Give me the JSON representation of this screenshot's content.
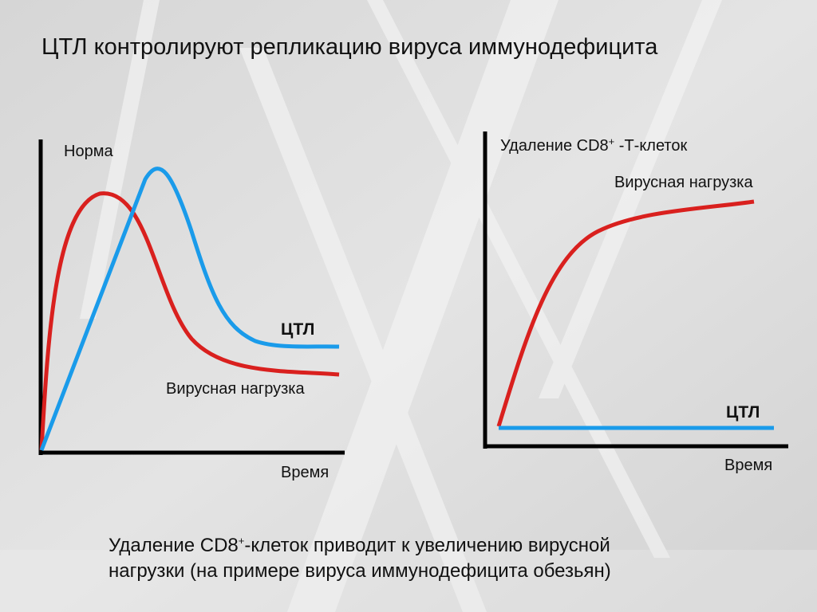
{
  "title": "ЦТЛ контролируют репликацию вируса иммунодефицита",
  "panels": [
    {
      "heading": {
        "parts": [
          "Норма"
        ]
      },
      "curves": [
        {
          "label": "ЦТЛ"
        },
        {
          "label": "Вирусная нагрузка"
        }
      ],
      "x_label": "Время"
    },
    {
      "heading": {
        "parts": [
          "Удаление CD8",
          "+",
          " -Т-клеток"
        ]
      },
      "curves": [
        {
          "label": "Вирусная нагрузка"
        },
        {
          "label": "ЦТЛ"
        }
      ],
      "x_label": "Время"
    }
  ],
  "caption": {
    "line1": [
      "Удаление CD8",
      "+",
      "-клеток приводит к увеличению вирусной"
    ],
    "line2": "нагрузки (на примере вируса иммунодефицита обезьян)"
  }
}
